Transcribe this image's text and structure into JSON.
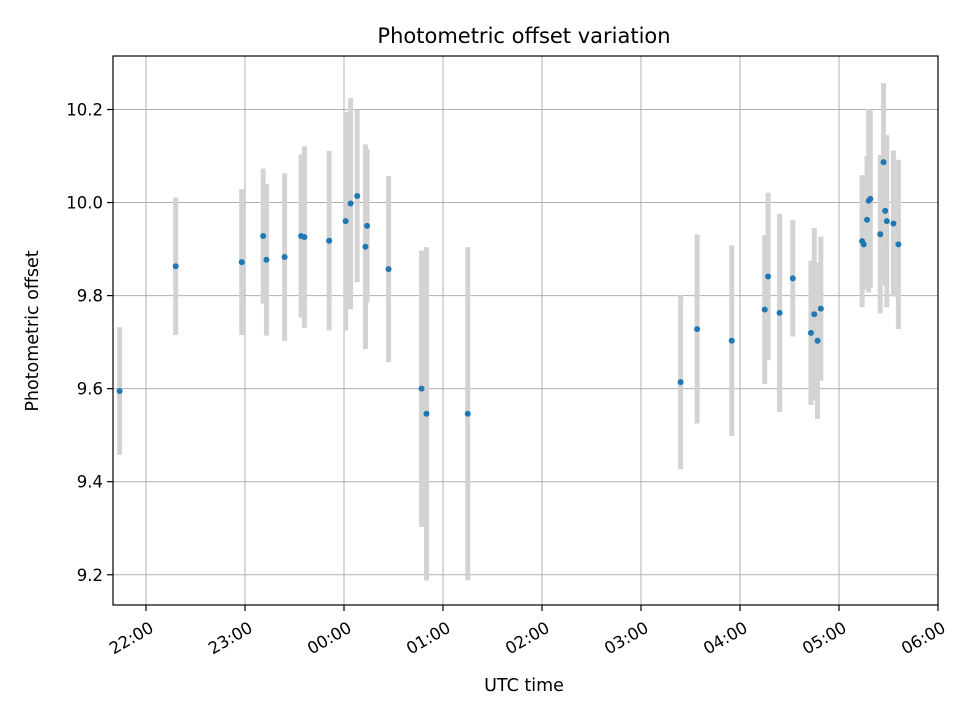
{
  "chart_data": {
    "type": "scatter",
    "title": "Photometric offset variation",
    "xlabel": "UTC time",
    "ylabel": "Photometric offset",
    "x_is_time": true,
    "x_range": [
      "21:40",
      "06:00"
    ],
    "ylim": [
      9.135,
      10.315
    ],
    "grid": true,
    "x_ticks": [
      "22:00",
      "23:00",
      "00:00",
      "01:00",
      "02:00",
      "03:00",
      "04:00",
      "05:00",
      "06:00"
    ],
    "y_ticks": [
      "9.2",
      "9.4",
      "9.6",
      "9.8",
      "10.0",
      "10.2"
    ],
    "colors": {
      "point": "#1f77b4",
      "errorbar": "#d3d3d3",
      "grid": "#b0b0b0"
    },
    "points": [
      {
        "x": "21:44",
        "y": 9.595,
        "err": 0.137
      },
      {
        "x": "22:18",
        "y": 9.863,
        "err": 0.148
      },
      {
        "x": "22:58",
        "y": 9.872,
        "err": 0.157
      },
      {
        "x": "23:11",
        "y": 9.928,
        "err": 0.145
      },
      {
        "x": "23:13",
        "y": 9.877,
        "err": 0.163
      },
      {
        "x": "23:24",
        "y": 9.883,
        "err": 0.18
      },
      {
        "x": "23:34",
        "y": 9.928,
        "err": 0.175
      },
      {
        "x": "23:36",
        "y": 9.926,
        "err": 0.195
      },
      {
        "x": "23:51",
        "y": 9.918,
        "err": 0.193
      },
      {
        "x": "00:01",
        "y": 9.96,
        "err": 0.235
      },
      {
        "x": "00:04",
        "y": 9.998,
        "err": 0.227
      },
      {
        "x": "00:08",
        "y": 10.014,
        "err": 0.185
      },
      {
        "x": "00:13",
        "y": 9.905,
        "err": 0.22
      },
      {
        "x": "00:14",
        "y": 9.95,
        "err": 0.165
      },
      {
        "x": "00:27",
        "y": 9.857,
        "err": 0.2
      },
      {
        "x": "00:47",
        "y": 9.6,
        "err": 0.297
      },
      {
        "x": "00:50",
        "y": 9.546,
        "err": 0.358
      },
      {
        "x": "01:15",
        "y": 9.546,
        "err": 0.358
      },
      {
        "x": "03:24",
        "y": 9.614,
        "err": 0.187
      },
      {
        "x": "03:34",
        "y": 9.728,
        "err": 0.203
      },
      {
        "x": "03:55",
        "y": 9.703,
        "err": 0.205
      },
      {
        "x": "04:15",
        "y": 9.77,
        "err": 0.16
      },
      {
        "x": "04:17",
        "y": 9.841,
        "err": 0.18
      },
      {
        "x": "04:24",
        "y": 9.763,
        "err": 0.213
      },
      {
        "x": "04:32",
        "y": 9.837,
        "err": 0.125
      },
      {
        "x": "04:43",
        "y": 9.72,
        "err": 0.155
      },
      {
        "x": "04:45",
        "y": 9.76,
        "err": 0.185
      },
      {
        "x": "04:47",
        "y": 9.703,
        "err": 0.168
      },
      {
        "x": "04:49",
        "y": 9.772,
        "err": 0.155
      },
      {
        "x": "05:14",
        "y": 9.917,
        "err": 0.142
      },
      {
        "x": "05:15",
        "y": 9.91,
        "err": 0.098
      },
      {
        "x": "05:17",
        "y": 9.963,
        "err": 0.137
      },
      {
        "x": "05:18",
        "y": 10.004,
        "err": 0.197
      },
      {
        "x": "05:19",
        "y": 10.008,
        "err": 0.19
      },
      {
        "x": "05:25",
        "y": 9.932,
        "err": 0.17
      },
      {
        "x": "05:27",
        "y": 10.087,
        "err": 0.17
      },
      {
        "x": "05:28",
        "y": 9.982,
        "err": 0.16
      },
      {
        "x": "05:29",
        "y": 9.96,
        "err": 0.185
      },
      {
        "x": "05:33",
        "y": 9.955,
        "err": 0.157
      },
      {
        "x": "05:36",
        "y": 9.91,
        "err": 0.182
      }
    ]
  }
}
